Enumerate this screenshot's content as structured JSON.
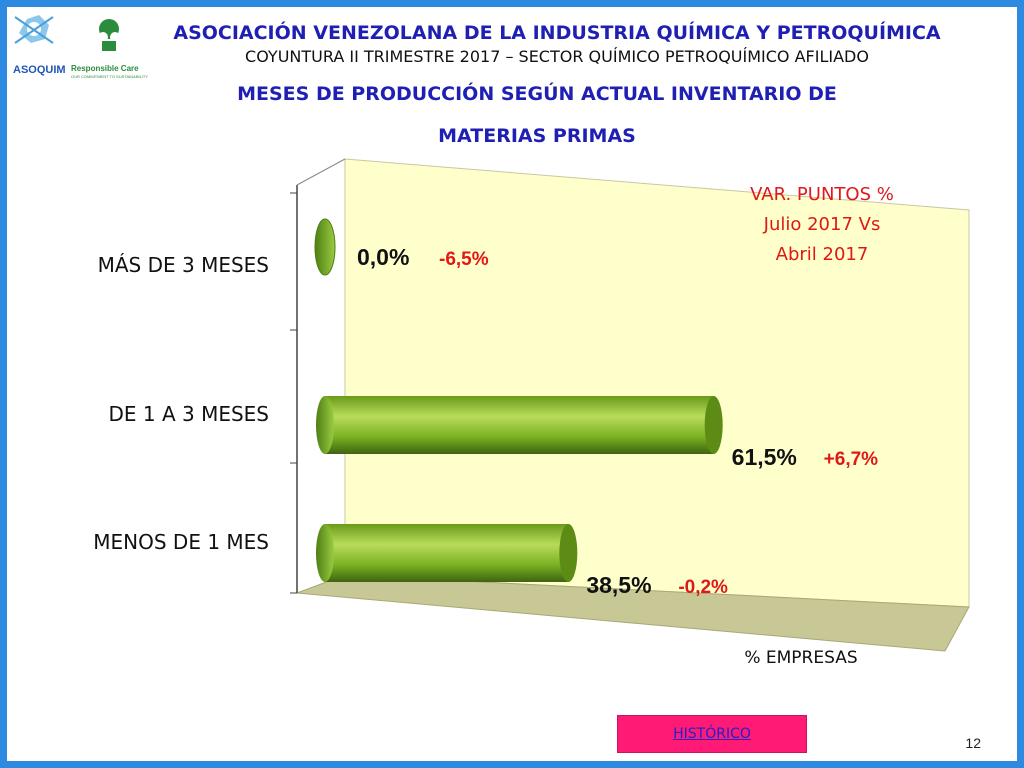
{
  "header": {
    "org": "ASOCIACIÓN VENEZOLANA DE LA INDUSTRIA QUÍMICA Y PETROQUÍMICA",
    "subtitle": "COYUNTURA II TRIMESTRE 2017 – SECTOR QUÍMICO PETROQUÍMICO AFILIADO",
    "title_line1": "MESES DE PRODUCCIÓN SEGÚN ACTUAL INVENTARIO DE",
    "title_line2": "MATERIAS PRIMAS"
  },
  "logos": {
    "asoquim": "ASOQUIM",
    "responsible_care": "Responsible Care",
    "tagline": "OUR COMMITMENT TO SUSTAINABILITY"
  },
  "colors": {
    "border": "#2e8ae0",
    "title": "#1f1fb3",
    "variation": "#e01818",
    "bar": "#78b01e",
    "plot_back": "#ffffcc",
    "plot_floor": "#c8c896",
    "history_button": "#ff1a75"
  },
  "chart_data": {
    "type": "bar",
    "orientation": "horizontal",
    "categories": [
      "MÁS DE 3 MESES",
      "DE 1 A 3 MESES",
      "MENOS DE 1 MES"
    ],
    "values": [
      0.0,
      61.5,
      38.5
    ],
    "value_labels": [
      "0,0%",
      "61,5%",
      "38,5%"
    ],
    "variation_labels": [
      "-6,5%",
      "+6,7%",
      "-0,2%"
    ],
    "variation_header": [
      "VAR. PUNTOS %",
      "Julio 2017 Vs",
      "Abril 2017"
    ],
    "xlabel": "% EMPRESAS",
    "xlim": [
      0,
      100
    ],
    "grid": false,
    "style": "3d-cylinder"
  },
  "footer": {
    "history_label": "HISTÓRICO",
    "page_number": "12"
  }
}
